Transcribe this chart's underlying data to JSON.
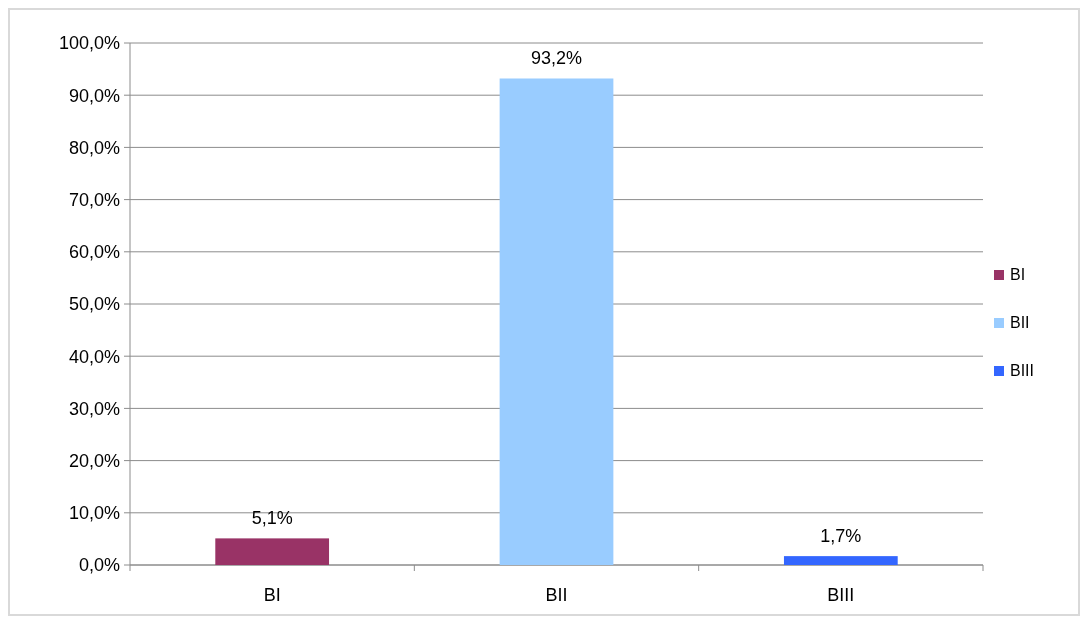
{
  "chart_data": {
    "type": "bar",
    "categories": [
      "BI",
      "BII",
      "BIII"
    ],
    "series": [
      {
        "name": "BI",
        "color": "#993366",
        "values": [
          5.1,
          null,
          null
        ],
        "value_labels": [
          "5,1%",
          null,
          null
        ]
      },
      {
        "name": "BII",
        "color": "#99ccff",
        "values": [
          null,
          93.2,
          null
        ],
        "value_labels": [
          null,
          "93,2%",
          null
        ]
      },
      {
        "name": "BIII",
        "color": "#3366ff",
        "values": [
          null,
          null,
          1.7
        ],
        "value_labels": [
          null,
          null,
          "1,7%"
        ]
      }
    ],
    "ylim": [
      0,
      100
    ],
    "yticks": [
      {
        "value": 0,
        "label": "0,0%"
      },
      {
        "value": 10,
        "label": "10,0%"
      },
      {
        "value": 20,
        "label": "20,0%"
      },
      {
        "value": 30,
        "label": "30,0%"
      },
      {
        "value": 40,
        "label": "40,0%"
      },
      {
        "value": 50,
        "label": "50,0%"
      },
      {
        "value": 60,
        "label": "60,0%"
      },
      {
        "value": 70,
        "label": "70,0%"
      },
      {
        "value": 80,
        "label": "80,0%"
      },
      {
        "value": 90,
        "label": "90,0%"
      },
      {
        "value": 100,
        "label": "100,0%"
      }
    ],
    "grid": "y",
    "legend": "right"
  }
}
